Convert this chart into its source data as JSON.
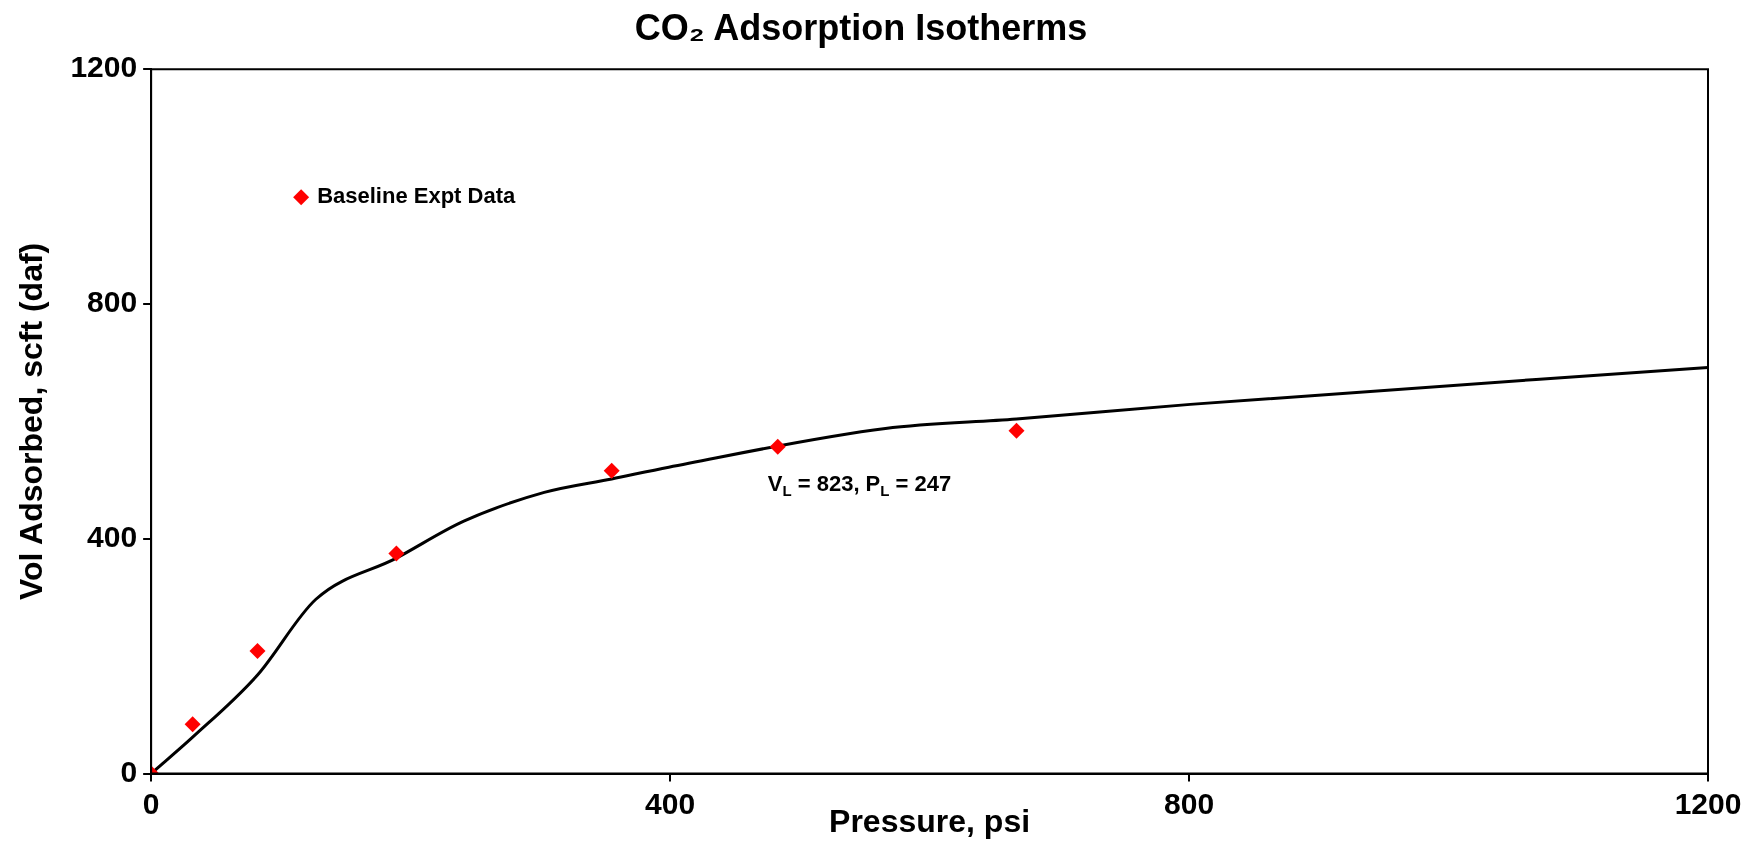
{
  "chart_data": {
    "type": "scatter",
    "title": "CO₂ Adsorption Isotherms",
    "xlabel": "Pressure, psi",
    "ylabel": "Vol Adsorbed, scft (daf)",
    "xlim": [
      0,
      1200
    ],
    "xticks": [
      0,
      400,
      800,
      1200
    ],
    "ylim": [
      0,
      1200
    ],
    "yticks": [
      0,
      400,
      800,
      1200
    ],
    "grid": false,
    "legend": "top left",
    "marker": "diamond",
    "series": [
      {
        "name": "Baseline Expt Data",
        "type": "scatter",
        "color": "#ff0000",
        "x": [
          0,
          32,
          82,
          189,
          355,
          483,
          667
        ],
        "values": [
          0,
          84,
          209,
          375,
          516,
          557,
          584
        ]
      },
      {
        "type": "line",
        "color": "#000000",
        "marker": "none",
        "x": [
          0,
          32,
          82,
          127,
          189,
          241,
          303,
          355,
          399,
          566,
          667,
          801,
          1200
        ],
        "values": [
          0,
          62,
          168,
          297,
          367,
          430,
          479,
          502,
          522,
          588,
          604,
          629,
          692
        ]
      }
    ],
    "annotations": [
      "V$_{L}$ = 823, P$_{L}$ = 247"
    ]
  }
}
